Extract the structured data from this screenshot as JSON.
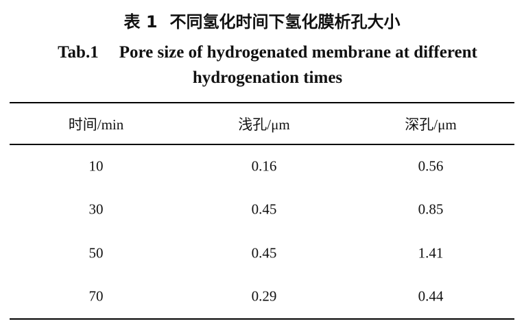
{
  "caption_cn": {
    "label": "表 1",
    "text": "不同氢化时间下氢化膜析孔大小"
  },
  "caption_en": {
    "label": "Tab.1",
    "text": "Pore size of hydrogenated membrane at different hydrogenation times"
  },
  "table": {
    "header": [
      "时间/min",
      "浅孔/μm",
      "深孔/μm"
    ],
    "rows": [
      [
        10,
        0.16,
        0.56
      ],
      [
        30,
        0.45,
        0.85
      ],
      [
        50,
        0.45,
        1.41
      ],
      [
        70,
        0.29,
        0.44
      ]
    ]
  }
}
